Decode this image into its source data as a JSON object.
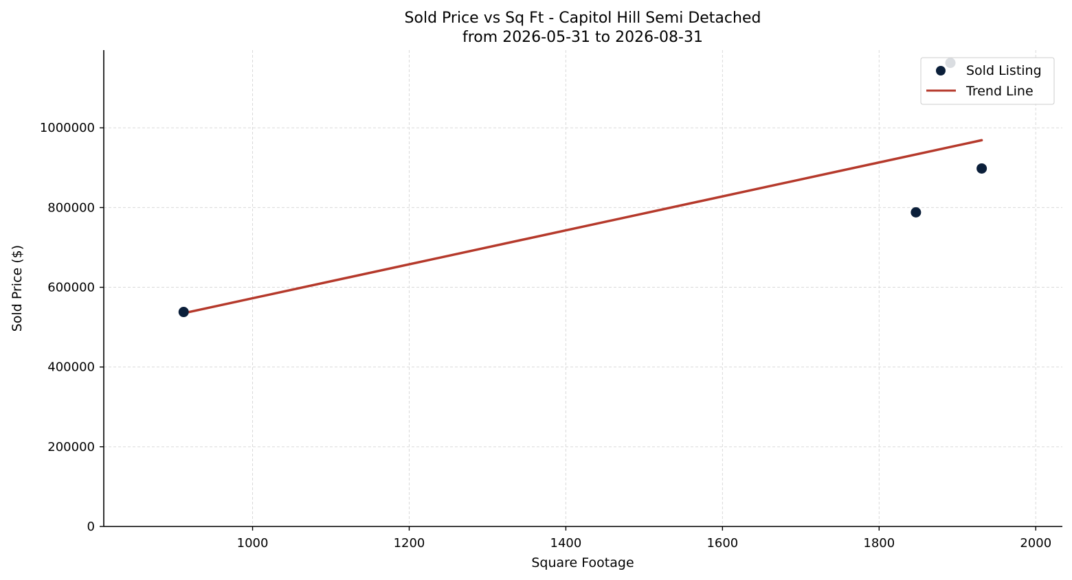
{
  "chart_data": {
    "type": "scatter",
    "title": "Sold Price vs Sq Ft - Capitol Hill Semi Detached",
    "subtitle": "from 2026-05-31 to 2026-08-31",
    "xlabel": "Square Footage",
    "ylabel": "Sold Price ($)",
    "xlim": [
      810,
      2034
    ],
    "ylim": [
      0,
      1195000
    ],
    "xticks": [
      1000,
      1200,
      1400,
      1600,
      1800,
      2000
    ],
    "yticks": [
      0,
      200000,
      400000,
      600000,
      800000,
      1000000
    ],
    "grid": true,
    "legend_position": "top-right",
    "series": [
      {
        "name": "Sold Listing",
        "color": "#0b1f3a",
        "points": [
          {
            "x": 912,
            "y": 538000
          },
          {
            "x": 1847,
            "y": 788000
          },
          {
            "x": 1931,
            "y": 898000
          },
          {
            "x": 1891,
            "y": 1163000
          }
        ]
      }
    ],
    "trend_line": {
      "name": "Trend Line",
      "color": "#b5392b",
      "x": [
        912,
        1931
      ],
      "y": [
        535000,
        969000
      ]
    }
  }
}
